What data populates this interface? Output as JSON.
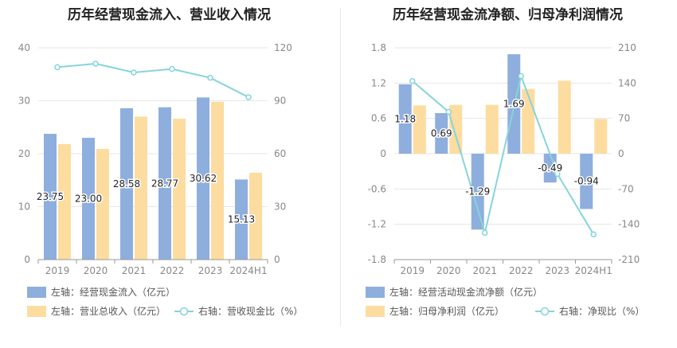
{
  "chart_data": [
    {
      "type": "bar",
      "title": "历年经营现金流入、营业收入情况",
      "categories": [
        "2019",
        "2020",
        "2021",
        "2022",
        "2023",
        "2024H1"
      ],
      "series": [
        {
          "name": "左轴：经营现金流入（亿元）",
          "axis": "left",
          "kind": "bar",
          "color": "#8eaedd",
          "values": [
            23.75,
            23.0,
            28.58,
            28.77,
            30.62,
            15.13
          ],
          "labels": [
            "23.75",
            "23.00",
            "28.58",
            "28.77",
            "30.62",
            "15.13"
          ]
        },
        {
          "name": "左轴：营业总收入（亿元）",
          "axis": "left",
          "kind": "bar",
          "color": "#fddca0",
          "values": [
            21.8,
            20.9,
            27.0,
            26.6,
            29.8,
            16.4
          ]
        },
        {
          "name": "右轴：营收现金比（%）",
          "axis": "right",
          "kind": "line",
          "color": "#86d4db",
          "values": [
            109,
            111,
            106,
            108,
            103,
            92
          ]
        }
      ],
      "left_axis": {
        "ticks": [
          "0",
          "10",
          "20",
          "30",
          "40"
        ],
        "ylim": [
          0,
          40
        ]
      },
      "right_axis": {
        "ticks": [
          "0",
          "30",
          "60",
          "90",
          "120"
        ],
        "ylim": [
          0,
          120
        ]
      },
      "legend_position": "bottom-left"
    },
    {
      "type": "bar",
      "title": "历年经营现金流净额、归母净利润情况",
      "categories": [
        "2019",
        "2020",
        "2021",
        "2022",
        "2023",
        "2024H1"
      ],
      "series": [
        {
          "name": "左轴：经营活动现金流净额（亿元）",
          "axis": "left",
          "kind": "bar",
          "color": "#8eaedd",
          "values": [
            1.18,
            0.69,
            -1.29,
            1.69,
            -0.49,
            -0.94
          ],
          "labels": [
            "1.18",
            "0.69",
            "-1.29",
            "1.69",
            "-0.49",
            "-0.94"
          ]
        },
        {
          "name": "左轴：归母净利润（亿元）",
          "axis": "left",
          "kind": "bar",
          "color": "#fddca0",
          "values": [
            0.82,
            0.83,
            0.83,
            1.1,
            1.24,
            0.59
          ]
        },
        {
          "name": "右轴：净现比（%）",
          "axis": "right",
          "kind": "line",
          "color": "#86d4db",
          "values": [
            144,
            83,
            -157,
            154,
            -40,
            -160
          ]
        }
      ],
      "left_axis": {
        "ticks": [
          "-1.8",
          "-1.2",
          "-0.6",
          "0",
          "0.6",
          "1.2",
          "1.8"
        ],
        "ylim": [
          -1.8,
          1.8
        ]
      },
      "right_axis": {
        "ticks": [
          "-210",
          "-140",
          "-70",
          "0",
          "70",
          "140",
          "210"
        ],
        "ylim": [
          -210,
          210
        ]
      },
      "legend_position": "bottom-left"
    }
  ]
}
